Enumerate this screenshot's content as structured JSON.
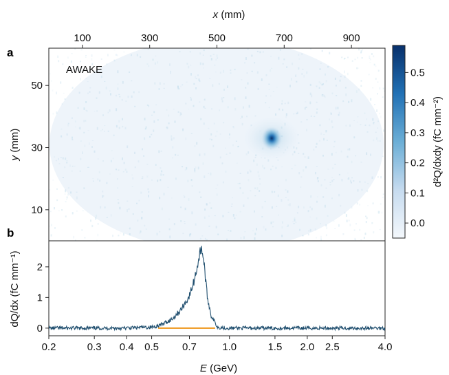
{
  "panel_a": {
    "letter": "a",
    "label": "AWAKE"
  },
  "panel_b": {
    "letter": "b"
  },
  "colors": {
    "spectrum_line": "#1f4e6e",
    "reference_line": "#f0a030",
    "colormap_low": "#f4f8fc",
    "colormap_high": "#08306b"
  },
  "chart_data": [
    {
      "type": "heatmap",
      "name": "panel-a",
      "x_axis": {
        "label_italic": "x",
        "label_rest": " (mm)",
        "range": [
          0,
          1000
        ],
        "ticks": [
          100,
          300,
          500,
          700,
          900
        ],
        "position": "top"
      },
      "y_axis": {
        "label_italic": "y",
        "label_rest": " (mm)",
        "range": [
          0,
          62
        ],
        "ticks": [
          10,
          30,
          50
        ]
      },
      "colorbar": {
        "label": "d²Q/dxdy (fC mm⁻²)",
        "range": [
          -0.05,
          0.59
        ],
        "ticks": [
          0.0,
          0.1,
          0.2,
          0.3,
          0.4,
          0.5
        ],
        "tick_labels": [
          "0.0",
          "0.1",
          "0.2",
          "0.3",
          "0.4",
          "0.5"
        ]
      },
      "spot": {
        "x": 663,
        "y": 33,
        "peak": 0.55
      }
    },
    {
      "type": "line",
      "name": "panel-b",
      "x_axis": {
        "label_italic": "E",
        "label_rest": " (GeV)",
        "scale": "log",
        "range": [
          0.2,
          4.0
        ],
        "ticks": [
          0.2,
          0.3,
          0.4,
          0.5,
          0.7,
          1.0,
          1.5,
          2.0,
          4.0
        ],
        "tick_labels": [
          "0.2",
          "0.3",
          "0.4",
          "0.5",
          "0.7",
          "1.0",
          "1.5",
          "2.0",
          "4.0"
        ],
        "extra_ticks": [
          2.5
        ],
        "extra_tick_labels": [
          "2.5"
        ]
      },
      "y_axis": {
        "label": "dQ/dx (fC mm⁻¹)",
        "range": [
          -0.25,
          2.85
        ],
        "ticks": [
          0,
          1,
          2
        ]
      },
      "series": [
        {
          "x": [
            0.2,
            0.3,
            0.4,
            0.45,
            0.5,
            0.55,
            0.6,
            0.65,
            0.7,
            0.73,
            0.76,
            0.78,
            0.8,
            0.82,
            0.85,
            0.9,
            1.0,
            1.5,
            2.0,
            3.0,
            4.0
          ],
          "y": [
            0.0,
            0.0,
            0.0,
            0.02,
            0.03,
            0.12,
            0.3,
            0.6,
            1.05,
            1.55,
            2.25,
            2.7,
            2.0,
            1.05,
            0.4,
            0.03,
            0.0,
            0.0,
            0.0,
            0.0,
            0.0
          ]
        },
        {
          "x": [
            0.53,
            0.88
          ],
          "y": [
            0.0,
            0.0
          ]
        }
      ]
    }
  ]
}
